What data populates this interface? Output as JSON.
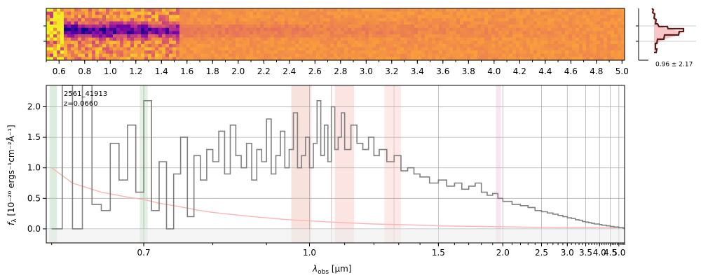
{
  "chart_data": [
    {
      "type": "heatmap",
      "panel": "2d-spectrum",
      "x_tick_labels": [
        "0.6",
        "0.8",
        "1.0",
        "1.2",
        "1.4",
        "1.6",
        "1.8",
        "2.0",
        "2.2",
        "2.4",
        "2.6",
        "2.8",
        "3.0",
        "3.2",
        "3.4",
        "3.6",
        "3.8",
        "4.0",
        "4.2",
        "4.4",
        "4.6",
        "4.8",
        "5.0"
      ],
      "x_range": [
        0.5,
        5.02
      ],
      "colormap": [
        "#0d0887",
        "#6a00a8",
        "#b12a90",
        "#e16462",
        "#fca636",
        "#f0f921"
      ],
      "rows": 16
    },
    {
      "type": "histogram",
      "panel": "pixel-distribution",
      "annotation": "0.96 ± 2.17"
    },
    {
      "type": "line",
      "panel": "1d-spectrum",
      "annotation_name": "2561_41913",
      "annotation_z": "z=0.0660",
      "xlabel_base": "λ",
      "xlabel_sub": "obs",
      "xlabel_unit": " [μm]",
      "ylabel_base": "f",
      "ylabel_sub": "λ",
      "ylabel_unit": " [10⁻²⁰ ergs⁻¹cm⁻²Å⁻¹]",
      "x_scale": "reciprocal",
      "xlim": [
        0.595,
        5.4
      ],
      "ylim": [
        -0.23,
        2.35
      ],
      "x_ticks": [
        0.7,
        1.0,
        1.5,
        2.0,
        2.5,
        3.0,
        3.5,
        4.0,
        4.5,
        5.0
      ],
      "x_tick_labels": [
        "0.7",
        "1.0",
        "1.5",
        "2.0",
        "2.5",
        "3.0",
        "3.5",
        "4.0",
        "4.5",
        "5.0"
      ],
      "y_ticks": [
        0.0,
        0.5,
        1.0,
        1.5,
        2.0
      ],
      "y_tick_labels": [
        "0.0",
        "0.5",
        "1.0",
        "1.5",
        "2.0"
      ],
      "grid": true,
      "series": [
        {
          "role": "flux",
          "color": "#808080",
          "x": [
            0.6,
            0.61,
            0.62,
            0.63,
            0.64,
            0.65,
            0.66,
            0.67,
            0.68,
            0.69,
            0.7,
            0.71,
            0.72,
            0.73,
            0.74,
            0.75,
            0.76,
            0.77,
            0.78,
            0.79,
            0.8,
            0.81,
            0.82,
            0.83,
            0.84,
            0.85,
            0.86,
            0.87,
            0.88,
            0.89,
            0.9,
            0.91,
            0.92,
            0.93,
            0.94,
            0.95,
            0.96,
            0.97,
            0.98,
            0.99,
            1.0,
            1.01,
            1.02,
            1.03,
            1.04,
            1.05,
            1.06,
            1.07,
            1.08,
            1.09,
            1.1,
            1.12,
            1.14,
            1.16,
            1.18,
            1.2,
            1.22,
            1.25,
            1.28,
            1.31,
            1.34,
            1.37,
            1.4,
            1.45,
            1.5,
            1.55,
            1.6,
            1.65,
            1.7,
            1.75,
            1.8,
            1.85,
            1.9,
            1.95,
            2.0,
            2.1,
            2.2,
            2.3,
            2.4,
            2.5,
            2.6,
            2.7,
            2.8,
            2.9,
            3.0,
            3.1,
            3.2,
            3.3,
            3.4,
            3.5,
            3.6,
            3.7,
            3.8,
            3.9,
            4.0,
            4.1,
            4.2,
            4.3,
            4.4,
            4.5,
            4.6,
            4.7,
            4.8,
            4.9,
            5.0,
            5.1,
            5.2,
            5.3,
            5.33
          ],
          "y": [
            0.0,
            3.0,
            0.0,
            2.5,
            0.4,
            0.3,
            1.4,
            0.8,
            1.7,
            0.6,
            2.1,
            0.3,
            1.1,
            0.0,
            0.9,
            1.5,
            0.2,
            1.2,
            0.8,
            1.3,
            1.1,
            1.6,
            0.9,
            1.7,
            1.2,
            1.0,
            1.4,
            0.8,
            1.3,
            1.1,
            1.8,
            0.9,
            1.2,
            1.6,
            1.0,
            1.3,
            1.9,
            1.0,
            1.2,
            1.5,
            1.0,
            1.4,
            2.1,
            1.2,
            1.7,
            1.1,
            2.0,
            1.3,
            1.5,
            1.9,
            1.3,
            1.7,
            1.4,
            1.3,
            1.5,
            1.2,
            1.3,
            1.1,
            1.2,
            0.95,
            1.0,
            0.9,
            0.85,
            0.75,
            0.8,
            0.7,
            0.75,
            0.65,
            0.7,
            0.75,
            0.6,
            0.55,
            0.58,
            0.5,
            0.45,
            0.4,
            0.38,
            0.35,
            0.3,
            0.28,
            0.26,
            0.24,
            0.22,
            0.2,
            0.18,
            0.17,
            0.15,
            0.14,
            0.12,
            0.11,
            0.1,
            0.09,
            0.08,
            0.08,
            0.07,
            0.06,
            0.06,
            0.05,
            0.05,
            0.04,
            0.04,
            0.03,
            0.03,
            0.03,
            0.02,
            0.02,
            0.02,
            0.01,
            0.02
          ]
        },
        {
          "role": "error",
          "color": "#ffb3b3",
          "x": [
            0.6,
            0.62,
            0.65,
            0.68,
            0.7,
            0.72,
            0.75,
            0.78,
            0.8,
            0.85,
            0.9,
            0.95,
            1.0,
            1.1,
            1.2,
            1.3,
            1.4,
            1.5,
            1.6,
            1.8,
            2.0,
            2.2,
            2.5,
            3.0,
            3.5,
            4.0,
            4.5,
            5.0,
            5.33
          ],
          "y": [
            1.0,
            0.75,
            0.6,
            0.52,
            0.48,
            0.42,
            0.36,
            0.3,
            0.27,
            0.22,
            0.18,
            0.15,
            0.13,
            0.1,
            0.08,
            0.07,
            0.06,
            0.05,
            0.045,
            0.04,
            0.035,
            0.03,
            0.025,
            0.02,
            0.02,
            0.02,
            0.02,
            0.02,
            0.02
          ]
        }
      ],
      "bands": [
        {
          "x": [
            0.598,
            0.605
          ],
          "color": "#cde5d2"
        },
        {
          "x": [
            0.695,
            0.705
          ],
          "color": "#d4ead6"
        },
        {
          "x": [
            0.955,
            1.005
          ],
          "color": "#f5d5d0"
        },
        {
          "x": [
            1.07,
            1.13
          ],
          "color": "#fad9d6"
        },
        {
          "x": [
            1.24,
            1.31
          ],
          "color": "#fbe0de"
        },
        {
          "x": [
            1.93,
            1.98
          ],
          "color": "#f4dcec"
        }
      ],
      "line_marks": [
        {
          "x": 1.06,
          "color": "#e8c0c0"
        },
        {
          "x": 1.28,
          "color": "#f0c8c8"
        }
      ]
    }
  ]
}
